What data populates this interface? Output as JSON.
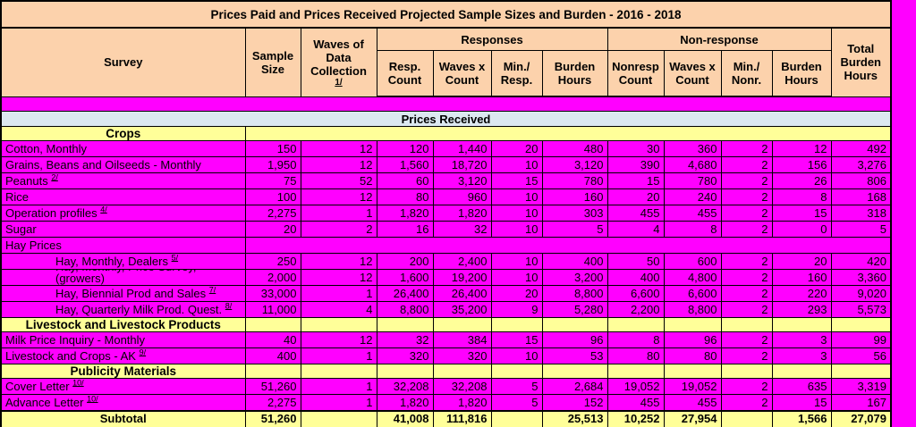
{
  "title": "Prices Paid and Prices Received Projected Sample Sizes and Burden - 2016 - 2018",
  "colors": {
    "header_bg": "#FCD2AC",
    "data_bg": "#FF00FF",
    "band_bg": "#DCE8F0",
    "section_bg": "#FFFF99",
    "border": "#000000",
    "text": "#000000"
  },
  "header": {
    "survey": "Survey",
    "sample_size": "Sample Size",
    "waves_label": "Waves of Data Collection",
    "waves_sup": "1/",
    "responses_group": "Responses",
    "nonresponse_group": "Non-response",
    "resp_count": "Resp. Count",
    "resp_waves_x_count": "Waves x Count",
    "min_resp": "Min./ Resp.",
    "resp_burden_hours": "Burden Hours",
    "nonresp_count": "Nonresp Count",
    "nonresp_waves_x_count": "Waves x Count",
    "min_nonr": "Min./ Nonr.",
    "nonresp_burden_hours": "Burden Hours",
    "total_burden_hours": "Total Burden Hours"
  },
  "rows": [
    {
      "type": "spacer"
    },
    {
      "type": "band",
      "label": "Prices Received"
    },
    {
      "type": "section_merged",
      "label": "Crops"
    },
    {
      "type": "data",
      "label": "Cotton, Monthly",
      "values": [
        "150",
        "12",
        "120",
        "1,440",
        "20",
        "480",
        "30",
        "360",
        "2",
        "12",
        "492"
      ]
    },
    {
      "type": "data",
      "label": "Grains, Beans and Oilseeds - Monthly",
      "values": [
        "1,950",
        "12",
        "1,560",
        "18,720",
        "10",
        "3,120",
        "390",
        "4,680",
        "2",
        "156",
        "3,276"
      ]
    },
    {
      "type": "data",
      "label": "Peanuts",
      "sup": "2/",
      "values": [
        "75",
        "52",
        "60",
        "3,120",
        "15",
        "780",
        "15",
        "780",
        "2",
        "26",
        "806"
      ]
    },
    {
      "type": "data",
      "label": "Rice",
      "values": [
        "100",
        "12",
        "80",
        "960",
        "10",
        "160",
        "20",
        "240",
        "2",
        "8",
        "168"
      ]
    },
    {
      "type": "data",
      "label": "Operation profiles",
      "sup": "4/",
      "values": [
        "2,275",
        "1",
        "1,820",
        "1,820",
        "10",
        "303",
        "455",
        "455",
        "2",
        "15",
        "318"
      ]
    },
    {
      "type": "data",
      "label": "Sugar",
      "values": [
        "20",
        "2",
        "16",
        "32",
        "10",
        "5",
        "4",
        "8",
        "2",
        "0",
        "5"
      ]
    },
    {
      "type": "label_row",
      "label": "Hay Prices"
    },
    {
      "type": "data",
      "label": "Hay, Monthly, Dealers",
      "sup": "5/",
      "indent": true,
      "values": [
        "250",
        "12",
        "200",
        "2,400",
        "10",
        "400",
        "50",
        "600",
        "2",
        "20",
        "420"
      ]
    },
    {
      "type": "data2",
      "label_line1": "Hay, Monthly, Price Survey,",
      "label": "(growers)",
      "indent": true,
      "values": [
        "2,000",
        "12",
        "1,600",
        "19,200",
        "10",
        "3,200",
        "400",
        "4,800",
        "2",
        "160",
        "3,360"
      ]
    },
    {
      "type": "data",
      "label": "Hay, Biennial Prod and Sales",
      "sup": "7/",
      "indent": true,
      "values": [
        "33,000",
        "1",
        "26,400",
        "26,400",
        "20",
        "8,800",
        "6,600",
        "6,600",
        "2",
        "220",
        "9,020"
      ]
    },
    {
      "type": "data",
      "label": "Hay, Quarterly Milk Prod. Quest.",
      "sup": "8/",
      "indent": true,
      "values": [
        "11,000",
        "4",
        "8,800",
        "35,200",
        "9",
        "5,280",
        "2,200",
        "8,800",
        "2",
        "293",
        "5,573"
      ]
    },
    {
      "type": "section_cells",
      "label": "Livestock and Livestock Products"
    },
    {
      "type": "data",
      "label": "Milk Price Inquiry - Monthly",
      "values": [
        "40",
        "12",
        "32",
        "384",
        "15",
        "96",
        "8",
        "96",
        "2",
        "3",
        "99"
      ]
    },
    {
      "type": "data",
      "label": "Livestock and Crops - AK",
      "sup": "9/",
      "values": [
        "400",
        "1",
        "320",
        "320",
        "10",
        "53",
        "80",
        "80",
        "2",
        "3",
        "56"
      ]
    },
    {
      "type": "section_cells",
      "label": "Publicity Materials"
    },
    {
      "type": "data",
      "label": "Cover Letter",
      "sup": "10/",
      "values": [
        "51,260",
        "1",
        "32,208",
        "32,208",
        "5",
        "2,684",
        "19,052",
        "19,052",
        "2",
        "635",
        "3,319"
      ]
    },
    {
      "type": "data",
      "label": "Advance Letter",
      "sup": "10/",
      "values": [
        "2,275",
        "1",
        "1,820",
        "1,820",
        "5",
        "152",
        "455",
        "455",
        "2",
        "15",
        "167"
      ]
    },
    {
      "type": "subtotal",
      "label": "Subtotal",
      "values": [
        "51,260",
        "",
        "41,008",
        "111,816",
        "",
        "25,513",
        "10,252",
        "27,954",
        "",
        "1,566",
        "27,079"
      ]
    }
  ]
}
